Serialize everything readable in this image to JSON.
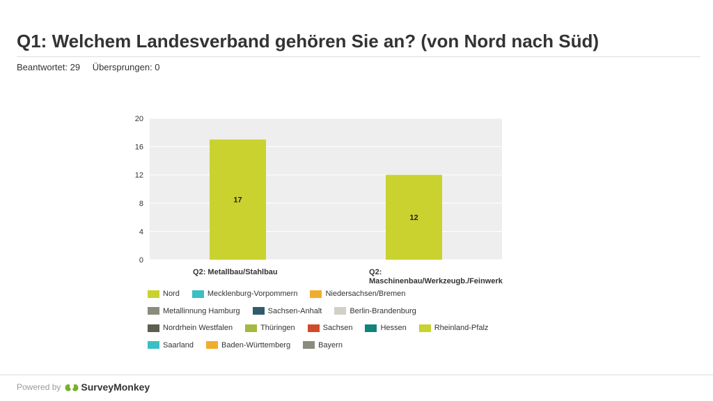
{
  "header": {
    "title": "Q1: Welchem Landesverband gehören Sie an? (von Nord nach Süd)",
    "answered": "Beantwortet: 29",
    "skipped": "Übersprungen: 0"
  },
  "chart_data": {
    "type": "bar",
    "categories": [
      "Q2: Metallbau/Stahlbau",
      "Q2: Maschinenbau/Werkzeugb./Feinwerk"
    ],
    "category_lines": [
      [
        "Q2: Metallbau/Stahlbau"
      ],
      [
        "Q2:",
        "Maschinenbau/Werkzeugb./Feinwerk"
      ]
    ],
    "values": [
      17,
      12
    ],
    "data_labels": [
      "17",
      "12"
    ],
    "bar_color": "#c9d22e",
    "plot_background": "#eeeeee",
    "grid": true,
    "ylim": [
      0,
      20
    ],
    "yticks": [
      0,
      4,
      8,
      12,
      16,
      20
    ],
    "title": "",
    "xlabel": "",
    "ylabel": "",
    "legend_position": "bottom",
    "legend": [
      [
        {
          "name": "Nord",
          "color": "#c9d22e"
        },
        {
          "name": "Mecklenburg-Vorpommern",
          "color": "#3bbfc4"
        },
        {
          "name": "Niedersachsen/Bremen",
          "color": "#f0ad2c"
        }
      ],
      [
        {
          "name": "Metallinnung Hamburg",
          "color": "#8b8b7e"
        },
        {
          "name": "Sachsen-Anhalt",
          "color": "#305a6e"
        },
        {
          "name": "Berlin-Brandenburg",
          "color": "#d2d0c6"
        }
      ],
      [
        {
          "name": "Nordrhein Westfalen",
          "color": "#5d5d50"
        },
        {
          "name": "Thüringen",
          "color": "#a5b840"
        },
        {
          "name": "Sachsen",
          "color": "#d24a2a"
        },
        {
          "name": "Hessen",
          "color": "#11837b"
        },
        {
          "name": "Rheinland-Pfalz",
          "color": "#c9d22e"
        }
      ],
      [
        {
          "name": "Saarland",
          "color": "#3bbfc4"
        },
        {
          "name": "Baden-Württemberg",
          "color": "#f0ad2c"
        },
        {
          "name": "Bayern",
          "color": "#8b8b7e"
        }
      ]
    ]
  },
  "footer": {
    "powered_by": "Powered by",
    "brand": "SurveyMonkey",
    "logo_icon": "surveymonkey-logo-icon",
    "logo_color": "#7ab02b"
  }
}
